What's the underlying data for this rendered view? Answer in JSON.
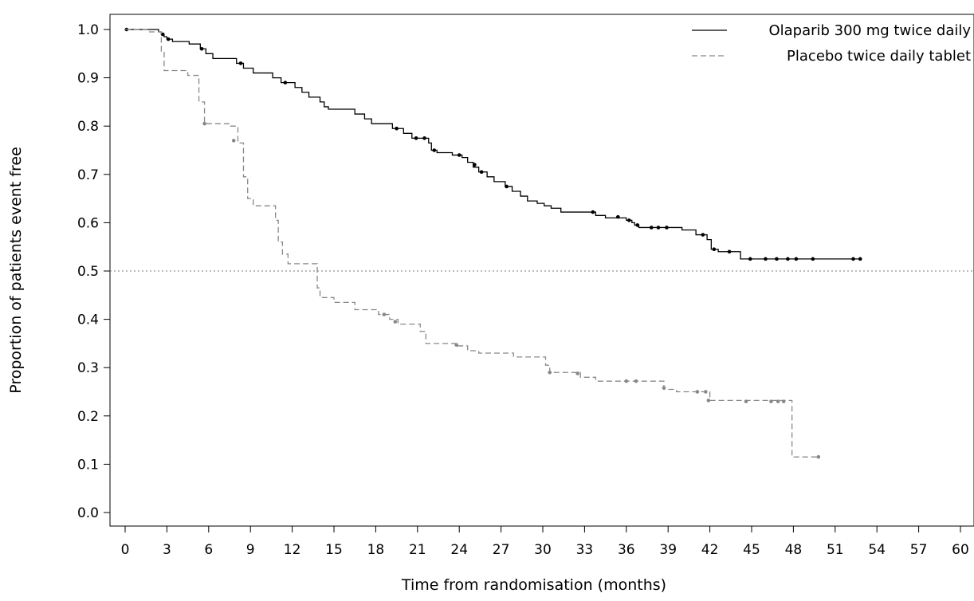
{
  "chart_data": {
    "type": "line",
    "subtype": "kaplan-meier step curve",
    "title": "",
    "xlabel": "Time from randomisation (months)",
    "ylabel": "Proportion of patients event free",
    "xlim": [
      0,
      60
    ],
    "ylim": [
      0.0,
      1.0
    ],
    "x_ticks": [
      0,
      3,
      6,
      9,
      12,
      15,
      18,
      21,
      24,
      27,
      30,
      33,
      36,
      39,
      42,
      45,
      48,
      51,
      54,
      57,
      60
    ],
    "y_ticks": [
      "0.0",
      "0.1",
      "0.2",
      "0.3",
      "0.4",
      "0.5",
      "0.6",
      "0.7",
      "0.8",
      "0.9",
      "1.0"
    ],
    "reference_line": {
      "y": 0.5,
      "style": "dotted"
    },
    "grid": false,
    "legend_position": "top-right",
    "series": [
      {
        "name": "Olaparib 300 mg twice daily",
        "color": "#000000",
        "line_style": "solid",
        "steps": [
          [
            0,
            1.0
          ],
          [
            2.4,
            0.995
          ],
          [
            2.6,
            0.99
          ],
          [
            2.8,
            0.985
          ],
          [
            3.0,
            0.98
          ],
          [
            3.4,
            0.975
          ],
          [
            4.6,
            0.97
          ],
          [
            5.4,
            0.96
          ],
          [
            5.8,
            0.95
          ],
          [
            6.3,
            0.94
          ],
          [
            8.0,
            0.93
          ],
          [
            8.5,
            0.92
          ],
          [
            9.2,
            0.91
          ],
          [
            10.6,
            0.9
          ],
          [
            11.2,
            0.89
          ],
          [
            12.2,
            0.88
          ],
          [
            12.7,
            0.87
          ],
          [
            13.2,
            0.86
          ],
          [
            14.0,
            0.85
          ],
          [
            14.3,
            0.84
          ],
          [
            14.6,
            0.835
          ],
          [
            16.5,
            0.825
          ],
          [
            17.2,
            0.815
          ],
          [
            17.7,
            0.805
          ],
          [
            19.2,
            0.795
          ],
          [
            20.0,
            0.785
          ],
          [
            20.6,
            0.775
          ],
          [
            21.8,
            0.765
          ],
          [
            22.0,
            0.75
          ],
          [
            22.4,
            0.745
          ],
          [
            23.5,
            0.74
          ],
          [
            24.2,
            0.735
          ],
          [
            24.6,
            0.725
          ],
          [
            25.0,
            0.715
          ],
          [
            25.4,
            0.705
          ],
          [
            26.0,
            0.695
          ],
          [
            26.5,
            0.685
          ],
          [
            27.3,
            0.675
          ],
          [
            27.8,
            0.665
          ],
          [
            28.4,
            0.655
          ],
          [
            28.9,
            0.645
          ],
          [
            29.6,
            0.64
          ],
          [
            30.1,
            0.635
          ],
          [
            30.6,
            0.63
          ],
          [
            31.3,
            0.622
          ],
          [
            33.8,
            0.615
          ],
          [
            34.5,
            0.61
          ],
          [
            36.0,
            0.605
          ],
          [
            36.4,
            0.6
          ],
          [
            36.6,
            0.595
          ],
          [
            36.9,
            0.59
          ],
          [
            40.0,
            0.585
          ],
          [
            41.0,
            0.575
          ],
          [
            41.8,
            0.565
          ],
          [
            42.1,
            0.545
          ],
          [
            42.6,
            0.54
          ],
          [
            44.2,
            0.525
          ],
          [
            52.8,
            0.525
          ]
        ],
        "censored": [
          [
            0.1,
            1.0
          ],
          [
            2.7,
            0.99
          ],
          [
            3.1,
            0.98
          ],
          [
            5.5,
            0.96
          ],
          [
            8.3,
            0.93
          ],
          [
            11.5,
            0.89
          ],
          [
            19.5,
            0.795
          ],
          [
            20.9,
            0.775
          ],
          [
            21.5,
            0.775
          ],
          [
            22.2,
            0.75
          ],
          [
            24.0,
            0.74
          ],
          [
            25.1,
            0.72
          ],
          [
            25.6,
            0.705
          ],
          [
            27.4,
            0.675
          ],
          [
            33.6,
            0.622
          ],
          [
            35.4,
            0.612
          ],
          [
            36.2,
            0.605
          ],
          [
            36.8,
            0.595
          ],
          [
            37.8,
            0.59
          ],
          [
            38.3,
            0.59
          ],
          [
            38.9,
            0.59
          ],
          [
            41.5,
            0.575
          ],
          [
            42.3,
            0.545
          ],
          [
            43.4,
            0.54
          ],
          [
            44.9,
            0.525
          ],
          [
            46.0,
            0.525
          ],
          [
            46.8,
            0.525
          ],
          [
            47.6,
            0.525
          ],
          [
            48.2,
            0.525
          ],
          [
            49.4,
            0.525
          ],
          [
            52.3,
            0.525
          ],
          [
            52.8,
            0.525
          ]
        ]
      },
      {
        "name": "Placebo twice daily tablet",
        "color": "#888888",
        "line_style": "dashed",
        "steps": [
          [
            0,
            1.0
          ],
          [
            1.6,
            0.995
          ],
          [
            2.6,
            0.955
          ],
          [
            2.8,
            0.915
          ],
          [
            4.5,
            0.905
          ],
          [
            5.3,
            0.85
          ],
          [
            5.7,
            0.805
          ],
          [
            7.5,
            0.8
          ],
          [
            8.1,
            0.765
          ],
          [
            8.5,
            0.695
          ],
          [
            8.8,
            0.65
          ],
          [
            9.2,
            0.635
          ],
          [
            10.8,
            0.605
          ],
          [
            11.0,
            0.56
          ],
          [
            11.3,
            0.535
          ],
          [
            11.7,
            0.515
          ],
          [
            13.8,
            0.465
          ],
          [
            14.0,
            0.445
          ],
          [
            15.0,
            0.435
          ],
          [
            16.5,
            0.42
          ],
          [
            18.2,
            0.41
          ],
          [
            19.0,
            0.4
          ],
          [
            19.6,
            0.39
          ],
          [
            21.2,
            0.375
          ],
          [
            21.6,
            0.35
          ],
          [
            23.7,
            0.345
          ],
          [
            24.6,
            0.335
          ],
          [
            25.4,
            0.33
          ],
          [
            27.9,
            0.322
          ],
          [
            30.2,
            0.305
          ],
          [
            30.5,
            0.29
          ],
          [
            32.0,
            0.29
          ],
          [
            32.7,
            0.28
          ],
          [
            33.8,
            0.272
          ],
          [
            38.7,
            0.255
          ],
          [
            39.6,
            0.25
          ],
          [
            42.0,
            0.232
          ],
          [
            47.8,
            0.232
          ],
          [
            47.9,
            0.115
          ],
          [
            49.8,
            0.115
          ]
        ],
        "censored": [
          [
            5.7,
            0.805
          ],
          [
            7.8,
            0.77
          ],
          [
            18.6,
            0.41
          ],
          [
            19.4,
            0.395
          ],
          [
            23.8,
            0.347
          ],
          [
            30.5,
            0.29
          ],
          [
            32.5,
            0.288
          ],
          [
            36.0,
            0.272
          ],
          [
            36.7,
            0.272
          ],
          [
            38.7,
            0.258
          ],
          [
            41.1,
            0.25
          ],
          [
            41.7,
            0.25
          ],
          [
            41.9,
            0.232
          ],
          [
            44.6,
            0.23
          ],
          [
            46.4,
            0.23
          ],
          [
            46.9,
            0.23
          ],
          [
            47.3,
            0.23
          ],
          [
            49.8,
            0.115
          ]
        ]
      }
    ]
  }
}
